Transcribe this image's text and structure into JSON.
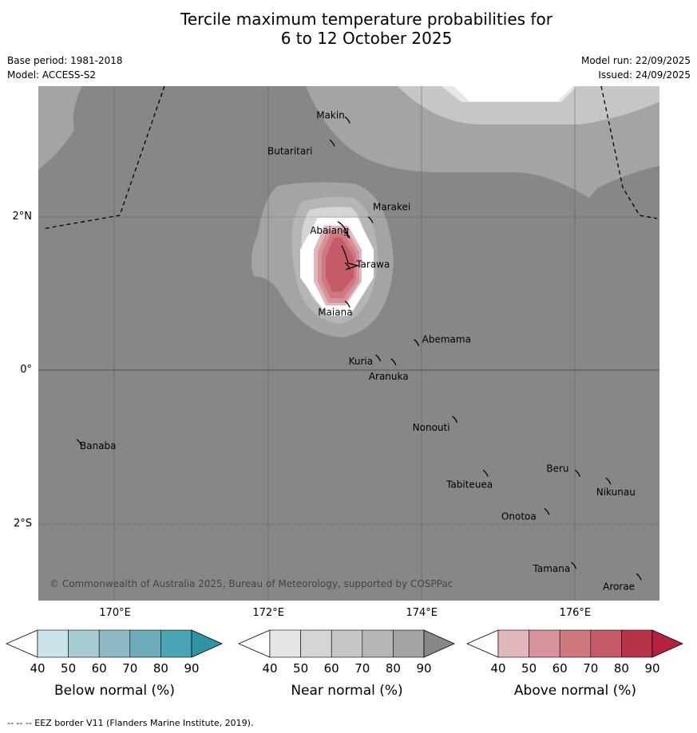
{
  "title_line1": "Tercile maximum temperature probabilities for",
  "title_line2": "6 to 12 October 2025",
  "meta": {
    "base_period": "Base period: 1981-2018",
    "model": "Model: ACCESS-S2",
    "model_run": "Model run: 22/09/2025",
    "issued": "Issued: 24/09/2025"
  },
  "map": {
    "lon_range": [
      169,
      177.1
    ],
    "lat_range": [
      -3,
      3.7
    ],
    "lat_labels": [
      "2°N",
      "0°",
      "2°S"
    ],
    "lon_labels": [
      "170°E",
      "172°E",
      "174°E",
      "176°E"
    ],
    "places": [
      {
        "name": "Makin",
        "lon": 173.0,
        "lat": 3.3
      },
      {
        "name": "Butaritari",
        "lon": 172.8,
        "lat": 3.0
      },
      {
        "name": "Marakei",
        "lon": 173.3,
        "lat": 2.0
      },
      {
        "name": "Abaiang",
        "lon": 173.0,
        "lat": 1.8
      },
      {
        "name": "Tarawa",
        "lon": 173.0,
        "lat": 1.4
      },
      {
        "name": "Maiana",
        "lon": 173.0,
        "lat": 0.9
      },
      {
        "name": "Abemama",
        "lon": 173.9,
        "lat": 0.4
      },
      {
        "name": "Kuria",
        "lon": 173.4,
        "lat": 0.2
      },
      {
        "name": "Aranuka",
        "lon": 173.6,
        "lat": 0.15
      },
      {
        "name": "Nonouti",
        "lon": 174.4,
        "lat": -0.6
      },
      {
        "name": "Banaba",
        "lon": 169.5,
        "lat": -0.9
      },
      {
        "name": "Tabiteuea",
        "lon": 174.8,
        "lat": -1.3
      },
      {
        "name": "Beru",
        "lon": 176.0,
        "lat": -1.3
      },
      {
        "name": "Nikunau",
        "lon": 176.4,
        "lat": -1.4
      },
      {
        "name": "Onotoa",
        "lon": 175.6,
        "lat": -1.8
      },
      {
        "name": "Tamana",
        "lon": 175.95,
        "lat": -2.5
      },
      {
        "name": "Arorae",
        "lon": 176.8,
        "lat": -2.65
      }
    ],
    "copyright": "© Commonwealth of Australia 2025, Bureau of Meteorology, supported by COSPPac"
  },
  "legend": {
    "ticks": [
      "40",
      "50",
      "60",
      "70",
      "80",
      "90"
    ],
    "bars": [
      {
        "title": "Below normal (%)",
        "colors": [
          "#cbe3ea",
          "#a8cbd2",
          "#8cb9c4",
          "#6dadbb",
          "#4ba4b3",
          "#2f95a6"
        ]
      },
      {
        "title": "Near normal (%)",
        "colors": [
          "#e6e6e6",
          "#d5d5d5",
          "#c6c6c6",
          "#b5b5b5",
          "#a4a4a4",
          "#878787"
        ]
      },
      {
        "title": "Above normal (%)",
        "colors": [
          "#e2b6bd",
          "#d8929a",
          "#cf7880",
          "#c55b68",
          "#b83249",
          "#b5213f"
        ]
      }
    ]
  },
  "footnote": "--  --  -- EEZ border V11 (Flanders Marine Institute, 2019)."
}
